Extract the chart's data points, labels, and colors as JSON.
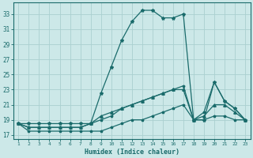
{
  "xlabel": "Humidex (Indice chaleur)",
  "background_color": "#cce8e8",
  "grid_color": "#aad0d0",
  "line_color": "#1a6b6b",
  "x": [
    1,
    2,
    3,
    4,
    5,
    6,
    7,
    8,
    9,
    10,
    11,
    12,
    13,
    14,
    15,
    16,
    17,
    18,
    19,
    20,
    21,
    22,
    23
  ],
  "series1": [
    18.5,
    18.5,
    18.5,
    18.5,
    18.5,
    18.5,
    18.5,
    18.5,
    22.5,
    26.0,
    29.5,
    32.0,
    33.5,
    33.5,
    32.5,
    32.5,
    33.0,
    19.0,
    19.0,
    24.0,
    21.5,
    20.5,
    19.0
  ],
  "series2": [
    18.5,
    18.0,
    18.0,
    18.0,
    18.0,
    18.0,
    18.0,
    18.5,
    19.0,
    19.5,
    20.5,
    21.0,
    21.5,
    22.0,
    22.5,
    23.0,
    23.5,
    19.0,
    20.0,
    24.0,
    21.5,
    20.5,
    19.0
  ],
  "series3": [
    18.5,
    18.0,
    18.0,
    18.0,
    18.0,
    18.0,
    18.0,
    18.5,
    19.5,
    20.0,
    20.5,
    21.0,
    21.5,
    22.0,
    22.5,
    23.0,
    23.0,
    19.0,
    19.5,
    21.0,
    21.0,
    20.0,
    19.0
  ],
  "series4": [
    18.5,
    17.5,
    17.5,
    17.5,
    17.5,
    17.5,
    17.5,
    17.5,
    17.5,
    18.0,
    18.5,
    19.0,
    19.0,
    19.5,
    20.0,
    20.5,
    21.0,
    19.0,
    19.0,
    19.5,
    19.5,
    19.0,
    19.0
  ],
  "ylim": [
    16.5,
    34.5
  ],
  "xlim": [
    0.5,
    23.5
  ],
  "yticks": [
    17,
    19,
    21,
    23,
    25,
    27,
    29,
    31,
    33
  ],
  "xticks": [
    1,
    2,
    3,
    4,
    5,
    6,
    7,
    8,
    9,
    10,
    11,
    12,
    13,
    14,
    15,
    16,
    17,
    18,
    19,
    20,
    21,
    22,
    23
  ]
}
